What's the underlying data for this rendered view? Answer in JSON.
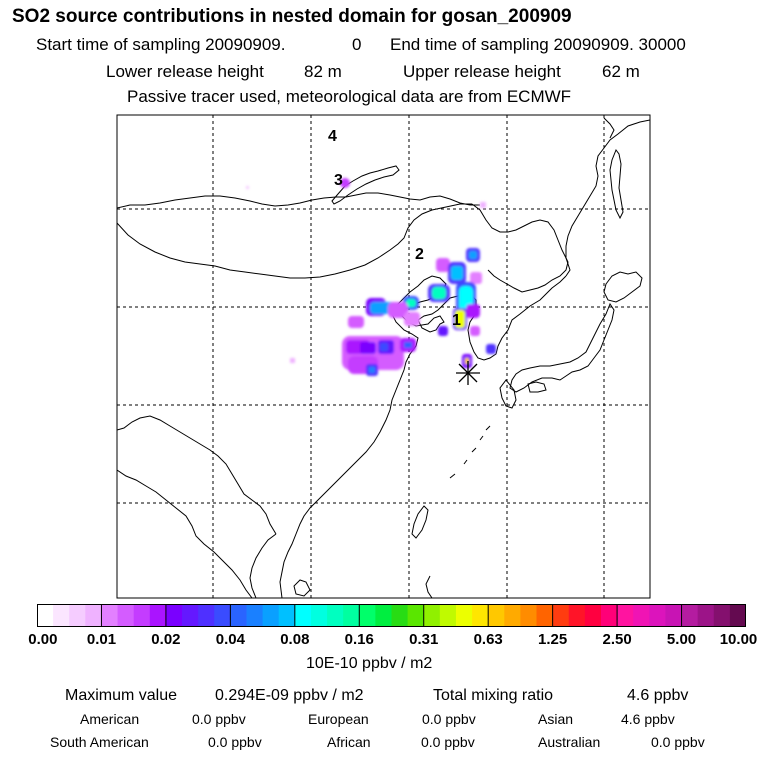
{
  "header": {
    "title": "SO2 source contributions in nested domain for gosan_200909",
    "start_label": "Start time of sampling 20090909.",
    "start_value": "0",
    "end_label": "End time of sampling 20090909. 30000",
    "lower_label": "Lower release height",
    "lower_value": "82 m",
    "upper_label": "Upper release height",
    "upper_value": "62 m",
    "note": "Passive tracer used, meteorological data are from ECMWF"
  },
  "map": {
    "labels": [
      "1",
      "2",
      "3",
      "4"
    ],
    "receptor_icon": "asterisk-icon",
    "grid": "dashed"
  },
  "colorbar": {
    "ticks": [
      "0.00",
      "0.01",
      "0.02",
      "0.04",
      "0.08",
      "0.16",
      "0.31",
      "0.63",
      "1.25",
      "2.50",
      "5.00",
      "10.00"
    ],
    "unit": "10E-10 ppbv / m2",
    "colors": [
      "#ffffff",
      "#fbe6ff",
      "#f5ccff",
      "#efb2ff",
      "#e380ff",
      "#d45cff",
      "#c43cff",
      "#aa14ff",
      "#7a00ff",
      "#6418ff",
      "#4f30ff",
      "#3a4cff",
      "#2a64ff",
      "#1a80ff",
      "#0aa0ff",
      "#00c0ff",
      "#00ffff",
      "#00ffe0",
      "#00ffc0",
      "#00ffa0",
      "#00ff6a",
      "#00ee40",
      "#28dc14",
      "#5ae600",
      "#90f000",
      "#c0fa00",
      "#ecff00",
      "#ffe600",
      "#ffc800",
      "#ffaa00",
      "#ff8c00",
      "#ff6400",
      "#ff3c10",
      "#ff1428",
      "#ff0040",
      "#ff0078",
      "#ff14a0",
      "#f014b4",
      "#dc14bc",
      "#c814b4",
      "#b41ca0",
      "#9c1488",
      "#84106e",
      "#640a50"
    ]
  },
  "footer": {
    "max_label": "Maximum value",
    "max_value": "0.294E-09 ppbv / m2",
    "total_label": "Total mixing ratio",
    "total_value": "4.6 ppbv",
    "regions": [
      {
        "name": "American",
        "value": "0.0 ppbv"
      },
      {
        "name": "European",
        "value": "0.0 ppbv"
      },
      {
        "name": "Asian",
        "value": "4.6 ppbv"
      },
      {
        "name": "South American",
        "value": "0.0 ppbv"
      },
      {
        "name": "African",
        "value": "0.0 ppbv"
      },
      {
        "name": "Australian",
        "value": "0.0 ppbv"
      }
    ]
  }
}
